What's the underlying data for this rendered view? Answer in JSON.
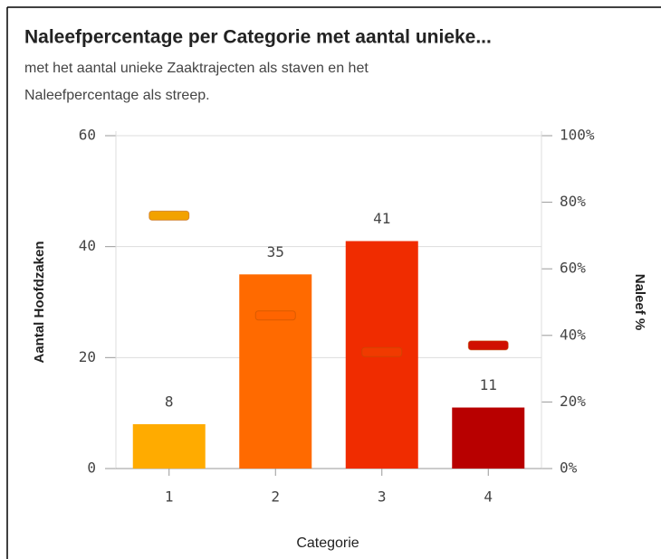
{
  "chart_data": {
    "type": "bar",
    "title": "Naleefpercentage per Categorie met aantal unieke...",
    "subtitle": [
      "met het aantal unieke Zaaktrajecten als staven en het",
      "Naleefpercentage als streep."
    ],
    "x_label": "Categorie",
    "y_label": "Aantal Hoofdzaken",
    "y2_label": "Naleef %",
    "categories": [
      "1",
      "2",
      "3",
      "4"
    ],
    "series": [
      {
        "type": "bar",
        "colors": [
          "#ffab00",
          "#ff6a00",
          "#f02c00",
          "#b80000"
        ],
        "values": [
          8,
          35,
          41,
          11
        ]
      },
      {
        "type": "marker",
        "axis": "y2",
        "colors": [
          "#f2a200",
          "#ff6400",
          "#f03a00",
          "#d01000"
        ],
        "values": [
          76,
          46,
          35,
          37
        ]
      }
    ],
    "ylim": [
      0,
      60
    ],
    "yticks": [
      0,
      20,
      40,
      60
    ],
    "y2lim": [
      0,
      100
    ],
    "y2ticks": [
      {
        "value": 0,
        "label": "0%"
      },
      {
        "value": 20,
        "label": "20%"
      },
      {
        "value": 40,
        "label": "40%"
      },
      {
        "value": 60,
        "label": "60%"
      },
      {
        "value": 80,
        "label": "80%"
      },
      {
        "value": 100,
        "label": "100%"
      }
    ],
    "grid": true
  }
}
